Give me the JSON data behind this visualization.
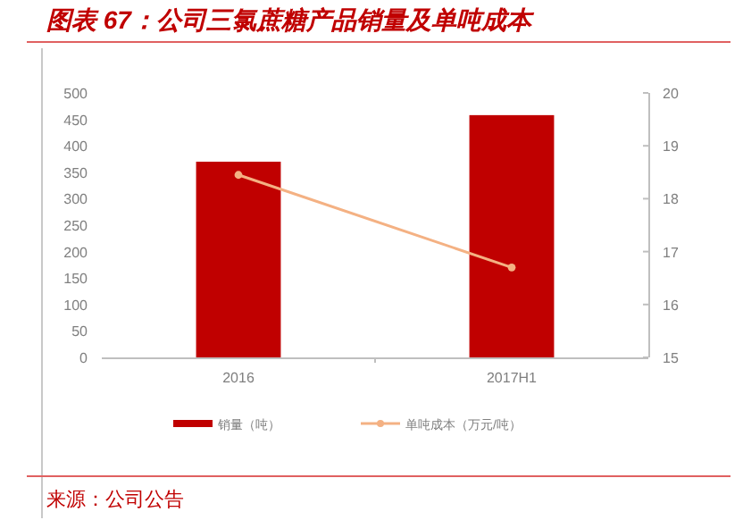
{
  "chart_data": {
    "type": "bar",
    "title": "图表 67：公司三氯蔗糖产品销量及单吨成本",
    "categories": [
      "2016",
      "2017H1"
    ],
    "series": [
      {
        "name": "销量（吨）",
        "color": "#c00000",
        "values": [
          370,
          458
        ]
      },
      {
        "name": "单吨成本（万元/吨）",
        "type": "line",
        "axis": "y2",
        "color": "#f4b183",
        "marker": "circle",
        "values": [
          18.45,
          16.7
        ]
      }
    ],
    "ylim": [
      0,
      500
    ],
    "yticks": [
      0,
      50,
      100,
      150,
      200,
      250,
      300,
      350,
      400,
      450,
      500
    ],
    "y2lim": [
      15,
      20
    ],
    "y2ticks": [
      15,
      16,
      17,
      18,
      19,
      20
    ],
    "legend": "bottom",
    "annotations": [
      "来源：公司公告"
    ]
  }
}
